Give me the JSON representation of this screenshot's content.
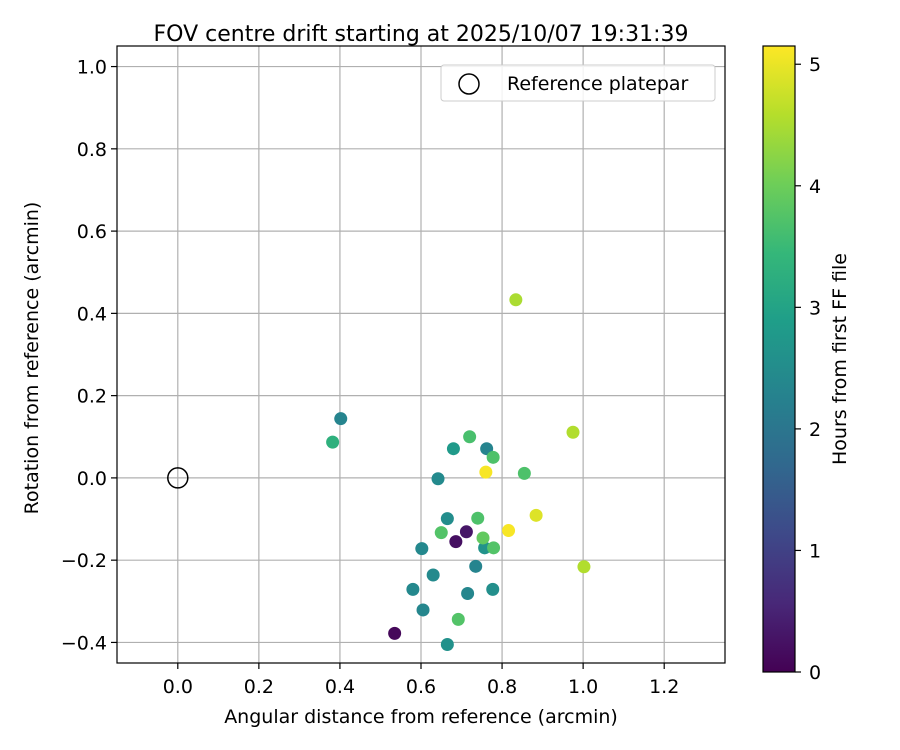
{
  "chart_data": {
    "type": "scatter",
    "title": "FOV centre drift starting at 2025/10/07 19:31:39",
    "xlabel": "Angular distance from reference (arcmin)",
    "ylabel": "Rotation from reference (arcmin)",
    "xlim": [
      -0.15,
      1.35
    ],
    "ylim": [
      -0.45,
      1.05
    ],
    "xticks": [
      0.0,
      0.2,
      0.4,
      0.6,
      0.8,
      1.0,
      1.2
    ],
    "yticks": [
      -0.4,
      -0.2,
      0.0,
      0.2,
      0.4,
      0.6,
      0.8,
      1.0
    ],
    "xtick_labels": [
      "0.0",
      "0.2",
      "0.4",
      "0.6",
      "0.8",
      "1.0",
      "1.2"
    ],
    "ytick_labels": [
      "−0.4",
      "−0.2",
      "0.0",
      "0.2",
      "0.4",
      "0.6",
      "0.8",
      "1.0"
    ],
    "grid": true,
    "legend": {
      "label": "Reference platepar",
      "location": "top-right"
    },
    "reference_point": {
      "x": 0.0,
      "y": 0.0
    },
    "colorbar": {
      "label": "Hours from first FF file",
      "range": [
        0,
        5.15
      ],
      "ticks": [
        0,
        1,
        2,
        3,
        4,
        5
      ],
      "tick_labels": [
        "0",
        "1",
        "2",
        "3",
        "4",
        "5"
      ],
      "colormap": "viridis"
    },
    "points": [
      {
        "x": 0.535,
        "y": -0.378,
        "hours": 0.1
      },
      {
        "x": 0.686,
        "y": -0.155,
        "hours": 0.2
      },
      {
        "x": 0.712,
        "y": -0.131,
        "hours": 0.3
      },
      {
        "x": 0.665,
        "y": -0.405,
        "hours": 2.6
      },
      {
        "x": 0.605,
        "y": -0.321,
        "hours": 2.35
      },
      {
        "x": 0.58,
        "y": -0.271,
        "hours": 2.4
      },
      {
        "x": 0.63,
        "y": -0.236,
        "hours": 2.45
      },
      {
        "x": 0.602,
        "y": -0.172,
        "hours": 2.4
      },
      {
        "x": 0.665,
        "y": -0.099,
        "hours": 2.5
      },
      {
        "x": 0.642,
        "y": -0.002,
        "hours": 2.45
      },
      {
        "x": 0.715,
        "y": -0.281,
        "hours": 2.35
      },
      {
        "x": 0.735,
        "y": -0.215,
        "hours": 2.3
      },
      {
        "x": 0.777,
        "y": -0.271,
        "hours": 2.55
      },
      {
        "x": 0.757,
        "y": -0.17,
        "hours": 2.65
      },
      {
        "x": 0.762,
        "y": 0.071,
        "hours": 2.3
      },
      {
        "x": 0.68,
        "y": 0.071,
        "hours": 2.8
      },
      {
        "x": 0.402,
        "y": 0.144,
        "hours": 2.3
      },
      {
        "x": 0.382,
        "y": 0.087,
        "hours": 3.3
      },
      {
        "x": 0.65,
        "y": -0.133,
        "hours": 3.75
      },
      {
        "x": 0.692,
        "y": -0.344,
        "hours": 3.75
      },
      {
        "x": 0.74,
        "y": -0.098,
        "hours": 3.7
      },
      {
        "x": 0.753,
        "y": -0.146,
        "hours": 3.9
      },
      {
        "x": 0.779,
        "y": -0.17,
        "hours": 3.75
      },
      {
        "x": 0.72,
        "y": 0.1,
        "hours": 3.65
      },
      {
        "x": 0.778,
        "y": 0.05,
        "hours": 3.7
      },
      {
        "x": 0.855,
        "y": 0.011,
        "hours": 3.7
      },
      {
        "x": 0.834,
        "y": 0.433,
        "hours": 4.5
      },
      {
        "x": 0.975,
        "y": 0.111,
        "hours": 4.55
      },
      {
        "x": 1.002,
        "y": -0.216,
        "hours": 4.55
      },
      {
        "x": 0.76,
        "y": 0.014,
        "hours": 5.1
      },
      {
        "x": 0.816,
        "y": -0.128,
        "hours": 5.1
      },
      {
        "x": 0.884,
        "y": -0.091,
        "hours": 4.9
      }
    ]
  }
}
